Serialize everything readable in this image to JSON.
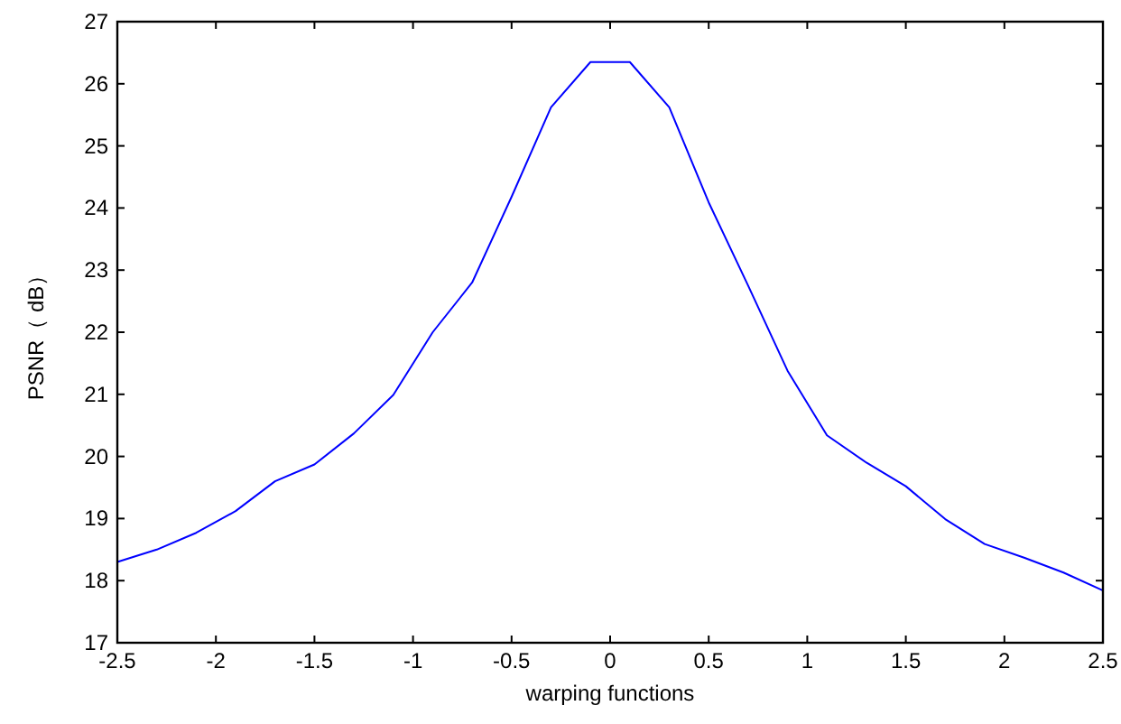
{
  "chart_data": {
    "type": "line",
    "xlabel": "warping functions",
    "ylabel": "PSNR（ dB）",
    "x": [
      -2.5,
      -2.3,
      -2.1,
      -1.9,
      -1.7,
      -1.5,
      -1.3,
      -1.1,
      -0.9,
      -0.7,
      -0.5,
      -0.3,
      -0.1,
      0.1,
      0.3,
      0.5,
      0.7,
      0.9,
      1.1,
      1.3,
      1.5,
      1.7,
      1.9,
      2.1,
      2.3,
      2.5
    ],
    "series": [
      {
        "color": "#0000ff",
        "values": [
          18.3,
          18.5,
          18.77,
          19.12,
          19.6,
          19.87,
          20.37,
          20.99,
          22.0,
          22.8,
          24.18,
          25.62,
          26.35,
          26.35,
          25.62,
          24.09,
          22.75,
          21.38,
          20.34,
          19.9,
          19.52,
          18.99,
          18.59,
          18.37,
          18.13,
          17.84
        ]
      }
    ],
    "xlim": [
      -2.5,
      2.5
    ],
    "xticks": [
      -2.5,
      -2,
      -1.5,
      -1,
      -0.5,
      0,
      0.5,
      1,
      1.5,
      2,
      2.5
    ],
    "ylim": [
      17,
      27
    ],
    "yticks": [
      17,
      18,
      19,
      20,
      21,
      22,
      23,
      24,
      25,
      26,
      27
    ],
    "grid": false,
    "marker": "none",
    "line_style": "solid"
  }
}
